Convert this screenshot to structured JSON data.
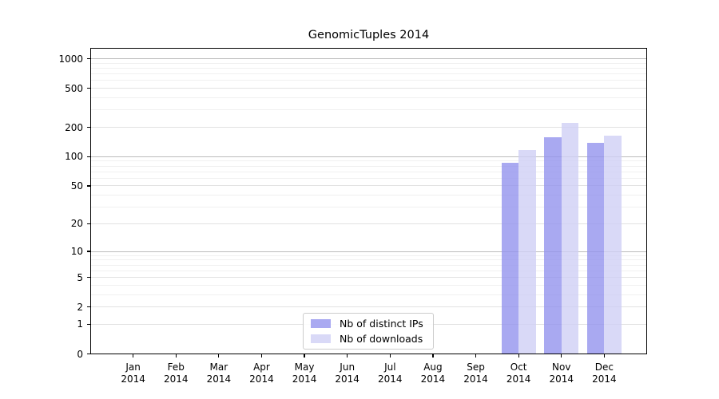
{
  "title": "GenomicTuples 2014",
  "chart_data": {
    "type": "bar",
    "title": "GenomicTuples 2014",
    "categories": [
      "Jan 2014",
      "Feb 2014",
      "Mar 2014",
      "Apr 2014",
      "May 2014",
      "Jun 2014",
      "Jul 2014",
      "Aug 2014",
      "Sep 2014",
      "Oct 2014",
      "Nov 2014",
      "Dec 2014"
    ],
    "series": [
      {
        "name": "Nb of distinct IPs",
        "color": "#a9a9f1",
        "fill": "rgba(147,147,238,0.8)",
        "values": [
          0,
          0,
          0,
          0,
          0,
          0,
          0,
          0,
          0,
          87,
          158,
          139
        ]
      },
      {
        "name": "Nb of downloads",
        "color": "#d9d9f7",
        "fill": "rgba(208,208,245,0.8)",
        "values": [
          0,
          0,
          0,
          0,
          0,
          0,
          0,
          0,
          0,
          117,
          220,
          163
        ]
      }
    ],
    "xlabel": "",
    "ylabel": "",
    "yscale": "log1p",
    "ylim": [
      0,
      1280
    ],
    "yticks": [
      0,
      1,
      2,
      5,
      10,
      20,
      50,
      100,
      200,
      500,
      1000
    ],
    "grid": {
      "decade_lines": [
        10,
        100,
        1000
      ],
      "mid_lines": [
        1,
        2,
        5,
        20,
        50,
        200,
        500
      ],
      "minor_lines": [
        3,
        4,
        6,
        7,
        8,
        9,
        30,
        40,
        60,
        70,
        80,
        90,
        300,
        400,
        600,
        700,
        800,
        900
      ]
    },
    "legend_position": "lower center",
    "bar_layout": "paired-around-tick"
  },
  "colors": {
    "background": "#ffffff",
    "spine": "#000000",
    "text": "#000000",
    "grid_decade": "#bdbdbd",
    "grid_mid": "#e2e2e2",
    "grid_minor": "#f0f0f0",
    "legend_border": "#cccccc"
  }
}
